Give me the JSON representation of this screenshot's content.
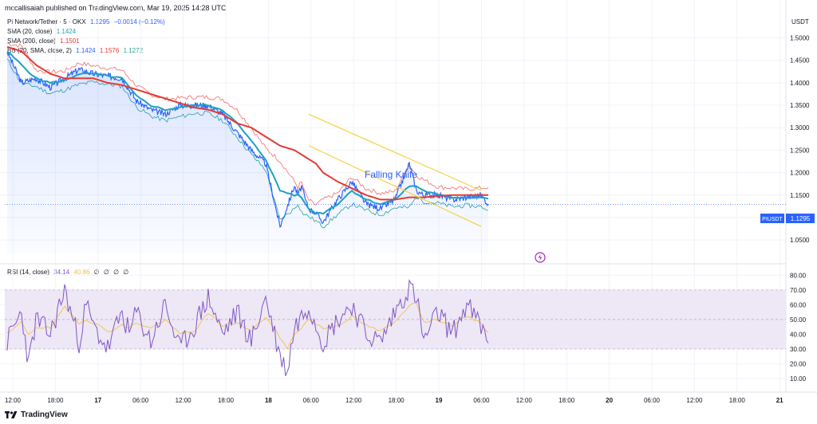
{
  "publisher": "mccallisaiah published on TradingView.com, Mar 19, 2025 14:28 UTC",
  "legend": {
    "symbol": {
      "label": "Pi Network/Tether · 5 · OKX",
      "value": "1.1295",
      "change": "−0.0014 (−0.12%)"
    },
    "sma20": {
      "label": "SMA (20, close)",
      "value": "1.1424",
      "color": "#1fa0c0"
    },
    "sma200": {
      "label": "SMA (200, close)",
      "value": "1.1501",
      "color": "#e53935"
    },
    "bb": {
      "label": "BB (20, SMA, close, 2)",
      "basis": "1.1424",
      "upper": "1.1576",
      "lower": "1.1272"
    }
  },
  "rsi_legend": {
    "label": "RSI (14, close)",
    "value": "34.14",
    "ma_value": "40.86",
    "extra": [
      "∅",
      "∅",
      "∅",
      "∅"
    ]
  },
  "annotation": "Falling Knife",
  "price_tag": {
    "symbol": "PIUSDT",
    "value": "1.1295"
  },
  "brand": "TradingView",
  "colors": {
    "price": "#2962ff",
    "sma20": "#1fa0c0",
    "sma200": "#e53935",
    "bb_upper": "#f06b6b",
    "bb_lower": "#26a69a",
    "trendline": "#f5d142",
    "rsi": "#7e57c2",
    "rsi_ma": "#f5c242",
    "rsi_band": "#ede7f6"
  },
  "chart_data": [
    {
      "type": "line",
      "title": "",
      "xlabel": "",
      "ylabel": "USDT",
      "unit": "USDT",
      "x_ticks": [
        "12:00",
        "18:00",
        "17",
        "06:00",
        "12:00",
        "18:00",
        "18",
        "06:00",
        "12:00",
        "18:00",
        "19",
        "06:00",
        "12:00",
        "18:00",
        "20",
        "06:00",
        "12:00",
        "18:00",
        "21"
      ],
      "y_ticks": [
        "1.0500",
        "1.1000",
        "1.1500",
        "1.2000",
        "1.2500",
        "1.3000",
        "1.3500",
        "1.4000",
        "1.4500",
        "1.5000"
      ],
      "ylim": [
        1.02,
        1.54
      ],
      "x_hours": [
        0,
        2,
        4,
        6,
        8,
        10,
        12,
        14,
        16,
        18,
        20,
        22,
        24,
        26,
        28,
        30,
        32,
        34,
        36,
        38,
        40,
        40.5,
        41,
        41.5,
        42,
        43,
        44,
        46,
        48,
        50,
        52,
        54,
        56,
        57,
        58,
        60,
        62,
        64,
        66,
        67
      ],
      "series": [
        {
          "name": "Pi Network/Tether",
          "values": [
            1.47,
            1.4,
            1.41,
            1.39,
            1.41,
            1.43,
            1.42,
            1.415,
            1.41,
            1.36,
            1.34,
            1.33,
            1.35,
            1.35,
            1.35,
            1.33,
            1.29,
            1.25,
            1.22,
            1.08,
            1.17,
            1.15,
            1.17,
            1.14,
            1.12,
            1.11,
            1.09,
            1.14,
            1.18,
            1.13,
            1.12,
            1.14,
            1.22,
            1.16,
            1.15,
            1.15,
            1.14,
            1.145,
            1.15,
            1.13
          ]
        },
        {
          "name": "SMA (20, close)",
          "values": [
            1.47,
            1.44,
            1.41,
            1.4,
            1.405,
            1.42,
            1.42,
            1.415,
            1.41,
            1.37,
            1.35,
            1.34,
            1.345,
            1.35,
            1.35,
            1.34,
            1.31,
            1.27,
            1.23,
            1.16,
            1.15,
            1.15,
            1.145,
            1.13,
            1.12,
            1.11,
            1.11,
            1.13,
            1.16,
            1.14,
            1.13,
            1.14,
            1.17,
            1.17,
            1.16,
            1.15,
            1.145,
            1.145,
            1.145,
            1.142
          ]
        },
        {
          "name": "SMA (200, close)",
          "values": [
            1.48,
            1.47,
            1.44,
            1.42,
            1.41,
            1.41,
            1.41,
            1.4,
            1.395,
            1.385,
            1.375,
            1.365,
            1.355,
            1.345,
            1.34,
            1.33,
            1.31,
            1.3,
            1.28,
            1.26,
            1.25,
            1.245,
            1.24,
            1.235,
            1.23,
            1.22,
            1.2,
            1.18,
            1.165,
            1.15,
            1.14,
            1.14,
            1.145,
            1.145,
            1.145,
            1.148,
            1.15,
            1.15,
            1.15,
            1.15
          ]
        }
      ],
      "trendlines": [
        {
          "x": [
            42,
            66
          ],
          "y": [
            1.33,
            1.16
          ]
        },
        {
          "x": [
            42,
            66
          ],
          "y": [
            1.26,
            1.08
          ]
        }
      ]
    },
    {
      "type": "line",
      "title": "RSI (14, close)",
      "y_ticks": [
        "10.00",
        "20.00",
        "30.00",
        "40.00",
        "50.00",
        "60.00",
        "70.00",
        "80.00"
      ],
      "ylim": [
        3,
        85
      ],
      "bands": [
        30,
        70
      ],
      "x_hours": [
        0,
        2,
        3,
        4,
        6,
        8,
        10,
        11,
        12,
        14,
        16,
        17,
        18,
        20,
        22,
        24,
        26,
        28,
        30,
        32,
        34,
        36,
        38,
        39,
        40,
        42,
        44,
        46,
        48,
        50,
        52,
        54,
        56,
        57,
        58,
        60,
        62,
        64,
        66,
        67
      ],
      "series": [
        {
          "name": "RSI",
          "values": [
            35,
            55,
            20,
            50,
            40,
            70,
            35,
            60,
            45,
            30,
            55,
            40,
            55,
            35,
            60,
            30,
            45,
            65,
            40,
            55,
            35,
            65,
            25,
            15,
            45,
            60,
            35,
            50,
            60,
            40,
            35,
            55,
            72,
            65,
            35,
            55,
            40,
            60,
            45,
            34
          ]
        },
        {
          "name": "RSI-based MA",
          "values": [
            40,
            48,
            40,
            45,
            44,
            58,
            48,
            50,
            48,
            42,
            46,
            44,
            48,
            44,
            50,
            40,
            42,
            54,
            46,
            48,
            42,
            52,
            38,
            30,
            40,
            50,
            44,
            46,
            52,
            46,
            42,
            48,
            60,
            62,
            48,
            50,
            46,
            52,
            48,
            41
          ]
        }
      ]
    }
  ]
}
